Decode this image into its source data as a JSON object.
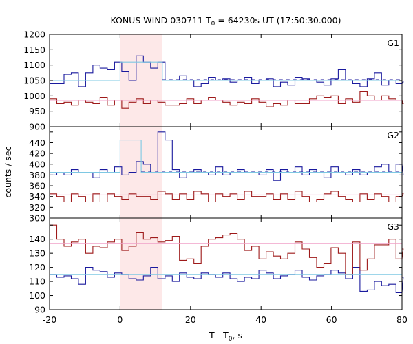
{
  "chart_data": {
    "type": "line",
    "title": "KONUS-WIND 030711 T",
    "title_sub": "0",
    "title_rest": " = 64230s UT (17:50:30.000)",
    "xlabel": "T - T",
    "xlabel_sub": "0",
    "xlabel_rest": ", s",
    "ylabel": "counts / sec",
    "xlim": [
      -20,
      80
    ],
    "x_ticks": [
      -20,
      0,
      20,
      40,
      60,
      80
    ],
    "shaded_interval": [
      0,
      12
    ],
    "shade_color": "#fde8e8",
    "colors": {
      "blue": "#1a1a9e",
      "red": "#9e1a1a",
      "cyan": "#7ec8e3",
      "pink": "#f0a0c8"
    },
    "panels": [
      {
        "label": "G1",
        "ylim": [
          900,
          1200
        ],
        "y_ticks": [
          900,
          950,
          1000,
          1050,
          1100,
          1150,
          1200
        ],
        "x_start": -20,
        "bin": 2.048,
        "series": [
          {
            "color": "blue",
            "values": [
              1040,
              1040,
              1070,
              1075,
              1030,
              1075,
              1100,
              1090,
              1085,
              1110,
              1080,
              1050,
              1130,
              1110,
              1090,
              1110,
              1050,
              1050,
              1065,
              1050,
              1030,
              1040,
              1060,
              1050,
              1055,
              1045,
              1050,
              1060,
              1040,
              1050,
              1055,
              1030,
              1045,
              1035,
              1060,
              1055,
              1050,
              1045,
              1035,
              1055,
              1085,
              1050,
              1040,
              1030,
              1055,
              1075,
              1035,
              1050,
              1040,
              1045
            ]
          },
          {
            "color": "red",
            "values": [
              990,
              975,
              980,
              970,
              985,
              980,
              975,
              995,
              970,
              985,
              960,
              980,
              990,
              975,
              985,
              980,
              970,
              970,
              975,
              990,
              975,
              985,
              995,
              985,
              980,
              970,
              980,
              975,
              990,
              980,
              965,
              975,
              970,
              985,
              975,
              975,
              990,
              1000,
              995,
              1000,
              975,
              990,
              980,
              1015,
              1000,
              985,
              1000,
              990,
              985,
              975
            ]
          }
        ],
        "fits": [
          {
            "color": "cyan",
            "points": [
              [
                -20,
                1050
              ],
              [
                0,
                1050
              ],
              [
                0,
                1110
              ],
              [
                12,
                1110
              ],
              [
                12,
                1050
              ],
              [
                80,
                1050
              ]
            ]
          },
          {
            "color": "pink",
            "points": [
              [
                -20,
                985
              ],
              [
                80,
                985
              ]
            ]
          }
        ],
        "dashed": [
          {
            "color": "blue",
            "points": [
              [
                12,
                1052
              ],
              [
                80,
                1052
              ]
            ]
          }
        ]
      },
      {
        "label": "G2",
        "ylim": [
          300,
          470
        ],
        "y_ticks": [
          300,
          320,
          340,
          360,
          380,
          400,
          420,
          440,
          460
        ],
        "x_start": -20,
        "bin": 2.048,
        "series": [
          {
            "color": "blue",
            "values": [
              380,
              385,
              380,
              390,
              385,
              385,
              375,
              390,
              385,
              395,
              380,
              385,
              405,
              400,
              385,
              460,
              445,
              390,
              375,
              385,
              390,
              385,
              380,
              395,
              380,
              385,
              390,
              385,
              385,
              380,
              390,
              370,
              390,
              385,
              395,
              380,
              390,
              385,
              375,
              395,
              385,
              380,
              390,
              380,
              385,
              395,
              400,
              385,
              400,
              380
            ]
          },
          {
            "color": "red",
            "values": [
              345,
              340,
              330,
              345,
              340,
              330,
              345,
              330,
              345,
              340,
              335,
              345,
              340,
              340,
              335,
              350,
              345,
              335,
              345,
              335,
              350,
              345,
              330,
              345,
              340,
              345,
              335,
              350,
              340,
              340,
              345,
              335,
              345,
              335,
              350,
              340,
              330,
              335,
              345,
              350,
              340,
              335,
              330,
              345,
              335,
              345,
              340,
              330,
              340,
              345
            ]
          }
        ],
        "fits": [
          {
            "color": "cyan",
            "points": [
              [
                -20,
                385
              ],
              [
                0,
                385
              ],
              [
                0,
                445
              ],
              [
                6,
                445
              ],
              [
                6,
                385
              ],
              [
                80,
                385
              ]
            ]
          },
          {
            "color": "pink",
            "points": [
              [
                -20,
                343
              ],
              [
                80,
                343
              ]
            ]
          }
        ],
        "dashed": [
          {
            "color": "blue",
            "points": [
              [
                6,
                387
              ],
              [
                80,
                387
              ]
            ]
          }
        ]
      },
      {
        "label": "G3",
        "ylim": [
          90,
          155
        ],
        "y_ticks": [
          90,
          100,
          110,
          120,
          130,
          140,
          150
        ],
        "x_start": -20,
        "bin": 2.048,
        "series": [
          {
            "color": "blue",
            "values": [
              115,
              113,
              114,
              112,
              108,
              120,
              118,
              117,
              113,
              116,
              115,
              112,
              111,
              114,
              120,
              112,
              114,
              110,
              116,
              113,
              112,
              116,
              115,
              113,
              116,
              112,
              110,
              113,
              112,
              118,
              116,
              112,
              114,
              115,
              118,
              113,
              111,
              114,
              115,
              118,
              116,
              112,
              120,
              103,
              104,
              110,
              107,
              108,
              102,
              113
            ]
          },
          {
            "color": "red",
            "values": [
              150,
              140,
              135,
              138,
              140,
              130,
              135,
              134,
              138,
              140,
              132,
              135,
              145,
              140,
              141,
              138,
              139,
              142,
              125,
              126,
              123,
              135,
              140,
              141,
              143,
              144,
              140,
              132,
              135,
              126,
              131,
              128,
              126,
              130,
              138,
              133,
              127,
              120,
              123,
              134,
              130,
              115,
              138,
              118,
              126,
              136,
              136,
              140,
              126,
              133
            ]
          }
        ],
        "fits": [
          {
            "color": "cyan",
            "points": [
              [
                -20,
                115
              ],
              [
                80,
                115
              ]
            ]
          },
          {
            "color": "pink",
            "points": [
              [
                -20,
                137
              ],
              [
                80,
                137
              ]
            ]
          }
        ],
        "dashed": []
      }
    ]
  }
}
